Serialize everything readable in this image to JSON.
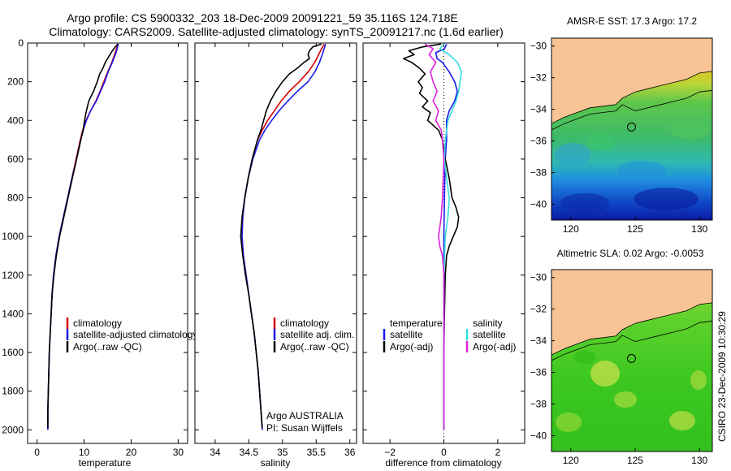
{
  "figure": {
    "title_line1": "Argo profile: CS 5900332_203 18-Dec-2009 20091221_59 35.116S 124.718E",
    "title_line2": "Climatology: CARS2009. Satellite-adjusted climatology: synTS_20091217.nc (1.6d earlier)",
    "credit": "CSIRO 23-Dec-2009 10:30:29",
    "signature_line1": "Argo AUSTRALIA",
    "signature_line2": "PI: Susan Wijffels"
  },
  "colors": {
    "climatology": "#dd0000",
    "satellite": "#1a1aee",
    "argo": "#000000",
    "satellite_cyan": "#33dddd",
    "argo_adj": "#dd22dd",
    "land": "#f9c495"
  },
  "chart_data": [
    {
      "type": "line",
      "id": "temperature",
      "xlabel": "temperature",
      "ylabel": "",
      "xlim": [
        -2,
        32
      ],
      "ylim": [
        2070,
        0
      ],
      "xticks": [
        0,
        10,
        20,
        30
      ],
      "yticks": [
        0,
        200,
        400,
        600,
        800,
        1000,
        1200,
        1400,
        1600,
        1800,
        2000
      ],
      "legend": [
        "climatology",
        "satellite-adjusted climatology",
        "Argo(..raw -QC)"
      ],
      "series": [
        {
          "name": "climatology",
          "color": "climatology",
          "depth": [
            5,
            50,
            100,
            150,
            200,
            250,
            300,
            350,
            400,
            450,
            500,
            600,
            700,
            800,
            900,
            1000,
            1100,
            1200,
            1300,
            1400,
            1500,
            1600,
            1700,
            1800,
            1900,
            2000
          ],
          "values": [
            17.2,
            16.6,
            15.9,
            15.0,
            14.2,
            13.4,
            12.5,
            11.4,
            10.4,
            9.7,
            9.2,
            8.3,
            7.4,
            6.5,
            5.6,
            4.7,
            4.0,
            3.5,
            3.2,
            3.0,
            2.8,
            2.6,
            2.5,
            2.4,
            2.3,
            2.3
          ]
        },
        {
          "name": "satellite-adjusted climatology",
          "color": "satellite",
          "depth": [
            5,
            50,
            100,
            150,
            200,
            250,
            300,
            350,
            400,
            450,
            500,
            600,
            700,
            800,
            900,
            1000,
            1100,
            1200,
            1300,
            1400,
            1500,
            1600,
            1700,
            1800,
            1900,
            2000
          ],
          "values": [
            17.3,
            16.8,
            16.0,
            15.1,
            14.4,
            13.5,
            12.6,
            11.4,
            10.5,
            9.8,
            9.3,
            8.4,
            7.4,
            6.5,
            5.6,
            4.7,
            4.0,
            3.5,
            3.2,
            3.0,
            2.8,
            2.6,
            2.5,
            2.4,
            2.3,
            2.3
          ]
        },
        {
          "name": "Argo(..raw -QC)",
          "color": "argo",
          "depth": [
            5,
            20,
            40,
            60,
            80,
            100,
            130,
            160,
            200,
            250,
            300,
            350,
            400,
            450,
            500,
            600,
            700,
            800,
            900,
            1000,
            1100,
            1200,
            1300,
            1400,
            1500,
            1600,
            1700,
            1800,
            1900,
            1990
          ],
          "values": [
            17.2,
            16.6,
            16.0,
            15.5,
            15.0,
            14.5,
            14.0,
            13.3,
            12.8,
            12.0,
            11.0,
            10.5,
            10.1,
            9.8,
            9.3,
            8.4,
            7.5,
            6.6,
            5.7,
            4.8,
            4.1,
            3.6,
            3.2,
            3.0,
            2.8,
            2.6,
            2.5,
            2.4,
            2.3,
            2.3
          ]
        }
      ]
    },
    {
      "type": "line",
      "id": "salinity",
      "xlabel": "salinity",
      "xlim": [
        33.7,
        36.1
      ],
      "ylim": [
        2070,
        0
      ],
      "xticks": [
        34,
        34.5,
        35,
        35.5,
        36
      ],
      "legend": [
        "climatology",
        "satellite adj. clim.",
        "Argo(..raw -QC)"
      ],
      "series": [
        {
          "name": "climatology",
          "color": "climatology",
          "depth": [
            5,
            50,
            100,
            150,
            200,
            250,
            300,
            350,
            400,
            450,
            500,
            600,
            700,
            800,
            900,
            1000,
            1100,
            1200,
            1300,
            1400,
            1500,
            1600,
            1700,
            1800,
            1900,
            2000
          ],
          "values": [
            35.62,
            35.55,
            35.48,
            35.38,
            35.25,
            35.1,
            34.98,
            34.88,
            34.78,
            34.7,
            34.63,
            34.55,
            34.49,
            34.44,
            34.41,
            34.4,
            34.42,
            34.46,
            34.5,
            34.54,
            34.58,
            34.61,
            34.64,
            34.66,
            34.68,
            34.7
          ]
        },
        {
          "name": "satellite adj. clim.",
          "color": "satellite",
          "depth": [
            5,
            50,
            100,
            150,
            200,
            250,
            300,
            350,
            400,
            450,
            500,
            600,
            700,
            800,
            900,
            1000,
            1100,
            1200,
            1300,
            1400,
            1500,
            1600,
            1700,
            1800,
            1900,
            2000
          ],
          "values": [
            35.64,
            35.6,
            35.55,
            35.48,
            35.38,
            35.22,
            35.08,
            34.95,
            34.84,
            34.74,
            34.66,
            34.56,
            34.49,
            34.44,
            34.41,
            34.4,
            34.42,
            34.46,
            34.5,
            34.54,
            34.58,
            34.61,
            34.64,
            34.66,
            34.68,
            34.7
          ]
        },
        {
          "name": "Argo(..raw -QC)",
          "color": "argo",
          "depth": [
            5,
            20,
            40,
            60,
            80,
            100,
            130,
            160,
            200,
            250,
            300,
            350,
            400,
            450,
            500,
            600,
            700,
            800,
            900,
            1000,
            1100,
            1200,
            1300,
            1400,
            1500,
            1600,
            1700,
            1800,
            1900,
            1990
          ],
          "values": [
            35.58,
            35.45,
            35.4,
            35.38,
            35.4,
            35.32,
            35.22,
            35.1,
            35.0,
            34.9,
            34.82,
            34.76,
            34.72,
            34.68,
            34.63,
            34.55,
            34.49,
            34.44,
            34.4,
            34.38,
            34.41,
            34.45,
            34.5,
            34.54,
            34.58,
            34.61,
            34.64,
            34.66,
            34.68,
            34.7
          ]
        }
      ]
    },
    {
      "type": "line",
      "id": "difference",
      "xlabel": "difference from climatology",
      "xlim": [
        -3,
        3
      ],
      "ylim": [
        2070,
        0
      ],
      "xticks": [
        -2,
        0,
        2
      ],
      "legend_temperature_title": "temperature",
      "legend_salinity_title": "salinity",
      "legend": [
        "satellite",
        "Argo(-adj)",
        "satellite",
        "Argo(-adj)"
      ],
      "series": [
        {
          "name": "temperature satellite",
          "color": "satellite",
          "depth": [
            5,
            30,
            50,
            80,
            100,
            150,
            200,
            250,
            300,
            350,
            400,
            500,
            600,
            800,
            1000,
            1200,
            1400,
            1600,
            1800,
            2000
          ],
          "values": [
            0.1,
            0.02,
            -0.3,
            -0.25,
            -0.05,
            0.2,
            0.4,
            0.5,
            0.4,
            0.2,
            0.1,
            0.1,
            0.05,
            0.02,
            0.0,
            0.0,
            0.0,
            0.0,
            0.0,
            0.0
          ]
        },
        {
          "name": "temperature Argo(-adj)",
          "color": "argo",
          "depth": [
            5,
            20,
            40,
            60,
            80,
            100,
            130,
            160,
            200,
            230,
            260,
            300,
            330,
            360,
            400,
            450,
            500,
            600,
            700,
            800,
            850,
            900,
            950,
            1000,
            1050,
            1100,
            1200,
            1400,
            1600,
            1800,
            1990
          ],
          "values": [
            -0.1,
            -0.8,
            -1.3,
            -1.1,
            -1.5,
            -1.2,
            -0.9,
            -0.7,
            -0.95,
            -0.8,
            -0.9,
            -0.6,
            -0.8,
            -0.5,
            -0.6,
            -0.2,
            -0.05,
            0.05,
            0.2,
            0.3,
            0.45,
            0.55,
            0.5,
            0.35,
            0.2,
            0.1,
            0.05,
            0.02,
            0.0,
            0.0,
            0.0
          ]
        },
        {
          "name": "salinity satellite",
          "color": "satellite_cyan",
          "depth": [
            5,
            30,
            60,
            100,
            150,
            200,
            250,
            300,
            350,
            400,
            500,
            600,
            700,
            800,
            900,
            1000,
            1200,
            1400,
            1600,
            1800,
            2000
          ],
          "values": [
            0.0,
            -0.15,
            0.2,
            0.5,
            0.65,
            0.6,
            0.55,
            0.45,
            0.3,
            0.15,
            0.05,
            0.02,
            0.1,
            0.2,
            0.15,
            0.05,
            0.0,
            0.0,
            0.0,
            0.0,
            0.0
          ]
        },
        {
          "name": "salinity Argo(-adj)",
          "color": "argo_adj",
          "depth": [
            5,
            30,
            60,
            100,
            150,
            200,
            250,
            300,
            350,
            400,
            450,
            500,
            600,
            800,
            900,
            1000,
            1050,
            1100,
            1200,
            1400,
            1600,
            1800,
            2000
          ],
          "values": [
            -0.7,
            -0.4,
            -0.55,
            -0.3,
            -0.5,
            -0.4,
            -0.25,
            -0.4,
            -0.2,
            -0.3,
            -0.1,
            -0.05,
            0.0,
            -0.05,
            -0.1,
            -0.2,
            -0.15,
            -0.05,
            0.0,
            0.0,
            0.0,
            0.0,
            0.0
          ]
        }
      ]
    },
    {
      "type": "heatmap",
      "id": "sst_map",
      "title": "AMSR-E SST: 17.3 Argo: 17.2",
      "xlim": [
        118.5,
        131
      ],
      "ylim": [
        -41,
        -29.5
      ],
      "xticks": [
        120,
        125,
        130
      ],
      "yticks": [
        -30,
        -32,
        -34,
        -36,
        -38,
        -40
      ],
      "profile_lon": 124.718,
      "profile_lat": -35.116,
      "coast_lon": [
        118.5,
        119.5,
        120.5,
        121.5,
        122.5,
        123.5,
        124.0,
        125.0,
        126.0,
        127.0,
        128.0,
        129.0,
        130.0,
        131.0
      ],
      "coast_lat": [
        -34.9,
        -34.5,
        -34.2,
        -33.9,
        -33.8,
        -33.7,
        -33.3,
        -32.9,
        -32.7,
        -32.5,
        -32.3,
        -32.1,
        -31.7,
        -31.6
      ]
    },
    {
      "type": "heatmap",
      "id": "sla_map",
      "title": "Altimetric SLA: 0.02 Argo: -0.0053",
      "xlim": [
        118.5,
        131
      ],
      "ylim": [
        -41,
        -29.5
      ],
      "xticks": [
        120,
        125,
        130
      ],
      "yticks": [
        -30,
        -32,
        -34,
        -36,
        -38,
        -40
      ],
      "profile_lon": 124.718,
      "profile_lat": -35.116,
      "coast_lon": [
        118.5,
        119.5,
        120.5,
        121.5,
        122.5,
        123.5,
        124.0,
        125.0,
        126.0,
        127.0,
        128.0,
        129.0,
        130.0,
        131.0
      ],
      "coast_lat": [
        -34.9,
        -34.5,
        -34.2,
        -33.9,
        -33.8,
        -33.7,
        -33.3,
        -32.9,
        -32.7,
        -32.5,
        -32.3,
        -32.1,
        -31.7,
        -31.6
      ]
    }
  ]
}
